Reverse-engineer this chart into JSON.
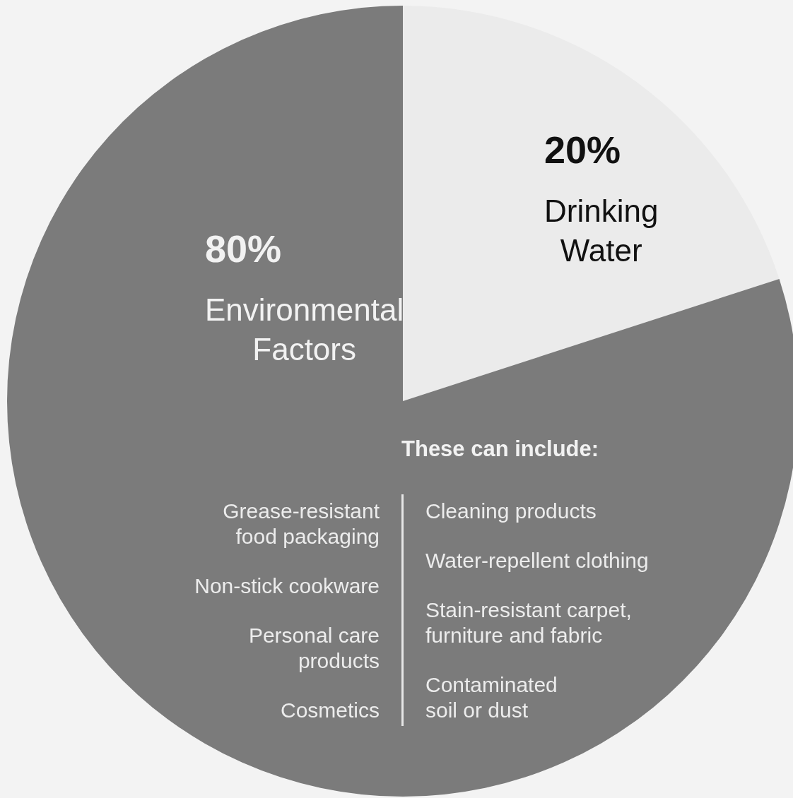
{
  "chart_data": {
    "type": "pie",
    "categories": [
      "Drinking Water",
      "Environmental Factors"
    ],
    "values": [
      20,
      80
    ],
    "colors": [
      "#ebebeb",
      "#7b7b7b"
    ],
    "value_labels": [
      "20%",
      "80%"
    ],
    "legend": false,
    "annotations": [
      "These can include:",
      "Grease-resistant\nfood packaging",
      "Non-stick cookware",
      "Personal care\nproducts",
      "Cosmetics",
      "Cleaning products",
      "Water-repellent clothing",
      "Stain-resistant carpet,\nfurniture and fabric",
      "Contaminated\nsoil or dust"
    ]
  }
}
